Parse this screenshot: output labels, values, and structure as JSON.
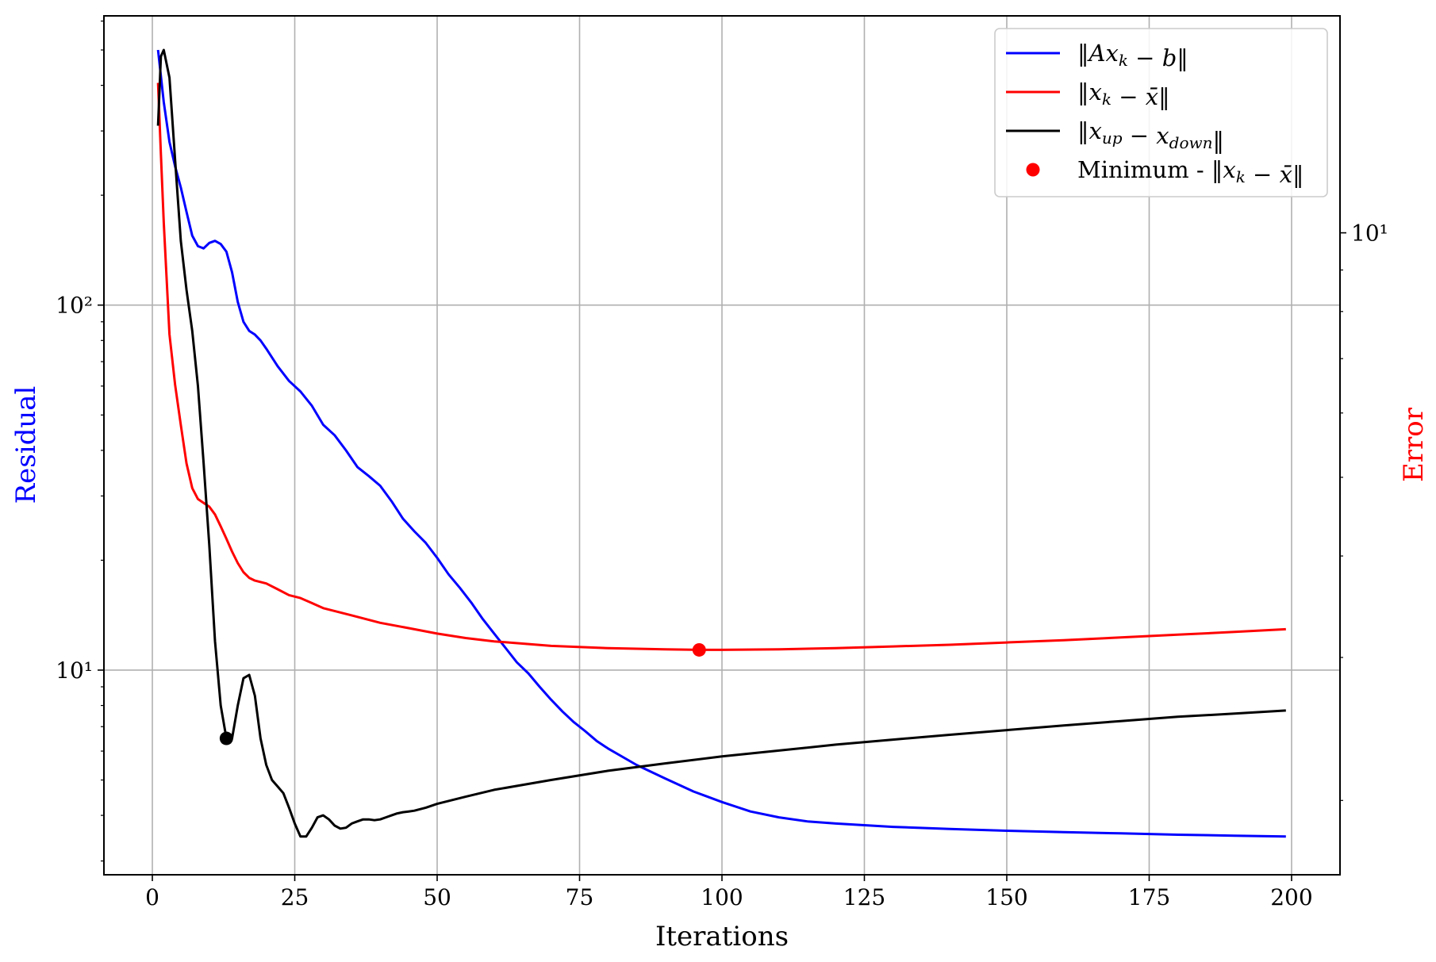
{
  "chart_data": {
    "type": "line",
    "xlabel": "Iterations",
    "ylabel_left": "Residual",
    "ylabel_right": "Error",
    "xlim": [
      -8.5,
      208.5
    ],
    "xticks": [
      0,
      25,
      50,
      75,
      100,
      125,
      150,
      175,
      200
    ],
    "xtick_labels": [
      "0",
      "25",
      "50",
      "75",
      "100",
      "125",
      "150",
      "175",
      "200"
    ],
    "left_axis": {
      "scale": "log",
      "lim": [
        2.75,
        620
      ],
      "major_ticks": [
        10,
        100
      ],
      "major_tick_labels": [
        "10¹",
        "10²"
      ],
      "minor_ticks": [
        3,
        4,
        5,
        6,
        7,
        8,
        9,
        20,
        30,
        40,
        50,
        60,
        70,
        80,
        90,
        200,
        300,
        400,
        500,
        600
      ]
    },
    "right_axis": {
      "scale": "log",
      "lim": [
        1.62,
        18.5
      ],
      "major_ticks": [
        10
      ],
      "major_tick_labels": [
        "10¹"
      ],
      "minor_ticks": [
        2,
        3,
        4,
        5,
        6,
        7,
        8,
        9
      ]
    },
    "grid": true,
    "legend_position": "top-right",
    "colors": {
      "residual": "#0000ff",
      "error": "#ff0000",
      "updown": "#000000",
      "minimum": "#ff0000",
      "grid": "#b0b0b0"
    },
    "series": [
      {
        "name": "‖Ax_k − b‖",
        "axis": "left",
        "color": "#0000ff",
        "x": [
          1,
          2,
          3,
          4,
          5,
          6,
          7,
          8,
          9,
          10,
          11,
          12,
          13,
          14,
          15,
          16,
          17,
          18,
          19,
          20,
          22,
          24,
          26,
          28,
          30,
          32,
          34,
          36,
          38,
          40,
          42,
          44,
          46,
          48,
          50,
          52,
          54,
          56,
          58,
          60,
          62,
          64,
          66,
          68,
          70,
          72,
          74,
          76,
          78,
          80,
          85,
          90,
          95,
          100,
          105,
          110,
          115,
          120,
          125,
          130,
          140,
          150,
          160,
          170,
          180,
          190,
          199
        ],
        "y": [
          500,
          360,
          280,
          240,
          210,
          180,
          155,
          145,
          143,
          148,
          150,
          147,
          140,
          123,
          102,
          90,
          85,
          83,
          80,
          76,
          68,
          62,
          58,
          53,
          47,
          44,
          40,
          36,
          34,
          32,
          29,
          26,
          24,
          22.3,
          20.3,
          18.3,
          16.8,
          15.3,
          13.8,
          12.6,
          11.5,
          10.5,
          9.8,
          9,
          8.3,
          7.7,
          7.2,
          6.8,
          6.4,
          6.1,
          5.5,
          5.05,
          4.65,
          4.35,
          4.1,
          3.95,
          3.85,
          3.8,
          3.76,
          3.72,
          3.67,
          3.63,
          3.6,
          3.57,
          3.54,
          3.52,
          3.5
        ]
      },
      {
        "name": "‖x_k − x̄‖",
        "axis": "right",
        "color": "#ff0000",
        "x": [
          1,
          1.5,
          2,
          3,
          4,
          5,
          6,
          7,
          8,
          9,
          10,
          11,
          12,
          13,
          14,
          15,
          16,
          17,
          18,
          20,
          22,
          24,
          26,
          28,
          30,
          35,
          40,
          45,
          50,
          55,
          60,
          70,
          80,
          90,
          96,
          100,
          110,
          120,
          130,
          140,
          150,
          160,
          170,
          180,
          190,
          199
        ],
        "y": [
          15.3,
          12.5,
          10.3,
          7.5,
          6.5,
          5.8,
          5.2,
          4.85,
          4.7,
          4.65,
          4.6,
          4.5,
          4.35,
          4.2,
          4.05,
          3.92,
          3.82,
          3.76,
          3.73,
          3.7,
          3.64,
          3.58,
          3.55,
          3.5,
          3.45,
          3.38,
          3.31,
          3.26,
          3.21,
          3.17,
          3.14,
          3.1,
          3.08,
          3.07,
          3.065,
          3.065,
          3.07,
          3.08,
          3.095,
          3.11,
          3.13,
          3.15,
          3.175,
          3.2,
          3.225,
          3.25
        ]
      },
      {
        "name": "‖x_up − x_down‖",
        "axis": "left",
        "color": "#000000",
        "x": [
          1,
          1.5,
          2,
          3,
          4,
          5,
          6,
          7,
          8,
          9,
          10,
          11,
          12,
          13,
          14,
          15,
          16,
          17,
          18,
          19,
          20,
          21,
          22,
          23,
          24,
          25,
          26,
          27,
          28,
          29,
          30,
          31,
          32,
          33,
          34,
          35,
          36,
          37,
          38,
          39,
          40,
          41,
          42,
          43,
          44,
          45,
          46,
          48,
          50,
          55,
          60,
          70,
          80,
          90,
          100,
          110,
          120,
          130,
          140,
          150,
          160,
          170,
          180,
          190,
          199
        ],
        "y": [
          310,
          480,
          500,
          420,
          250,
          150,
          110,
          85,
          60,
          37,
          22,
          12,
          8,
          6.5,
          6.5,
          8,
          9.5,
          9.7,
          8.5,
          6.5,
          5.5,
          5,
          4.8,
          4.6,
          4.2,
          3.8,
          3.5,
          3.5,
          3.7,
          3.95,
          4,
          3.9,
          3.75,
          3.68,
          3.7,
          3.8,
          3.85,
          3.9,
          3.9,
          3.88,
          3.9,
          3.95,
          4,
          4.05,
          4.08,
          4.1,
          4.12,
          4.2,
          4.3,
          4.5,
          4.7,
          5,
          5.3,
          5.55,
          5.8,
          6.02,
          6.25,
          6.45,
          6.65,
          6.85,
          7.05,
          7.25,
          7.45,
          7.6,
          7.75
        ]
      }
    ],
    "markers": [
      {
        "name": "Minimum - ‖x_k − x̄‖",
        "axis": "right",
        "x": 96,
        "y": 3.065,
        "color": "#ff0000"
      },
      {
        "axis": "left",
        "x": 13,
        "y": 6.5,
        "color": "#000000"
      }
    ],
    "legend": [
      {
        "label": "‖Ax_k − b‖",
        "kind": "line",
        "color": "#0000ff",
        "parts": [
          {
            "t": "‖"
          },
          {
            "t": "Ax",
            "i": true
          },
          {
            "t": "k",
            "i": true,
            "sub": true
          },
          {
            "t": " − "
          },
          {
            "t": "b",
            "i": true
          },
          {
            "t": "‖"
          }
        ]
      },
      {
        "label": "‖x_k − x̄‖",
        "kind": "line",
        "color": "#ff0000",
        "parts": [
          {
            "t": "‖"
          },
          {
            "t": "x",
            "i": true
          },
          {
            "t": "k",
            "i": true,
            "sub": true
          },
          {
            "t": " − "
          },
          {
            "t": "x̄",
            "i": true
          },
          {
            "t": "‖"
          }
        ]
      },
      {
        "label": "‖x_up − x_down‖",
        "kind": "line",
        "color": "#000000",
        "parts": [
          {
            "t": "‖"
          },
          {
            "t": "x",
            "i": true
          },
          {
            "t": "up",
            "i": true,
            "sub": true
          },
          {
            "t": " − "
          },
          {
            "t": "x",
            "i": true
          },
          {
            "t": "down",
            "i": true,
            "sub": true
          },
          {
            "t": "‖"
          }
        ]
      },
      {
        "label": "Minimum - ‖x_k − x̄‖",
        "kind": "marker",
        "color": "#ff0000",
        "parts": [
          {
            "t": "Minimum - ‖"
          },
          {
            "t": "x",
            "i": true
          },
          {
            "t": "k",
            "i": true,
            "sub": true
          },
          {
            "t": " − "
          },
          {
            "t": "x̄",
            "i": true
          },
          {
            "t": "‖"
          }
        ]
      }
    ]
  }
}
